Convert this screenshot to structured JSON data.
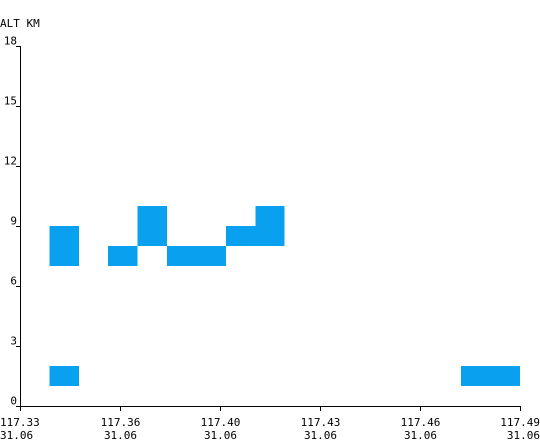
{
  "chart_data": {
    "type": "heatmap",
    "ylabel": "ALT KM",
    "ylim": [
      0,
      18
    ],
    "yticks": [
      "0",
      "3",
      "6",
      "9",
      "12",
      "15",
      "18"
    ],
    "xticks": [
      {
        "lon": "117.33",
        "lat": "31.06"
      },
      {
        "lon": "117.36",
        "lat": "31.06"
      },
      {
        "lon": "117.40",
        "lat": "31.06"
      },
      {
        "lon": "117.43",
        "lat": "31.06"
      },
      {
        "lon": "117.46",
        "lat": "31.06"
      },
      {
        "lon": "117.49",
        "lat": "31.06"
      }
    ],
    "bin_width_index": 1,
    "cells": [
      {
        "col": 1,
        "alt_low": 1,
        "alt_high": 2
      },
      {
        "col": 1,
        "alt_low": 7,
        "alt_high": 8
      },
      {
        "col": 1,
        "alt_low": 8,
        "alt_high": 9
      },
      {
        "col": 3,
        "alt_low": 7,
        "alt_high": 8
      },
      {
        "col": 4,
        "alt_low": 8,
        "alt_high": 9
      },
      {
        "col": 4,
        "alt_low": 9,
        "alt_high": 10
      },
      {
        "col": 5,
        "alt_low": 7,
        "alt_high": 8
      },
      {
        "col": 6,
        "alt_low": 7,
        "alt_high": 8
      },
      {
        "col": 7,
        "alt_low": 8,
        "alt_high": 9
      },
      {
        "col": 8,
        "alt_low": 8,
        "alt_high": 9
      },
      {
        "col": 8,
        "alt_low": 9,
        "alt_high": 10
      },
      {
        "col": 15,
        "alt_low": 1,
        "alt_high": 2
      },
      {
        "col": 16,
        "alt_low": 1,
        "alt_high": 2
      }
    ],
    "cell_color": "#0aa0f0",
    "grid": false,
    "legend": "none"
  }
}
